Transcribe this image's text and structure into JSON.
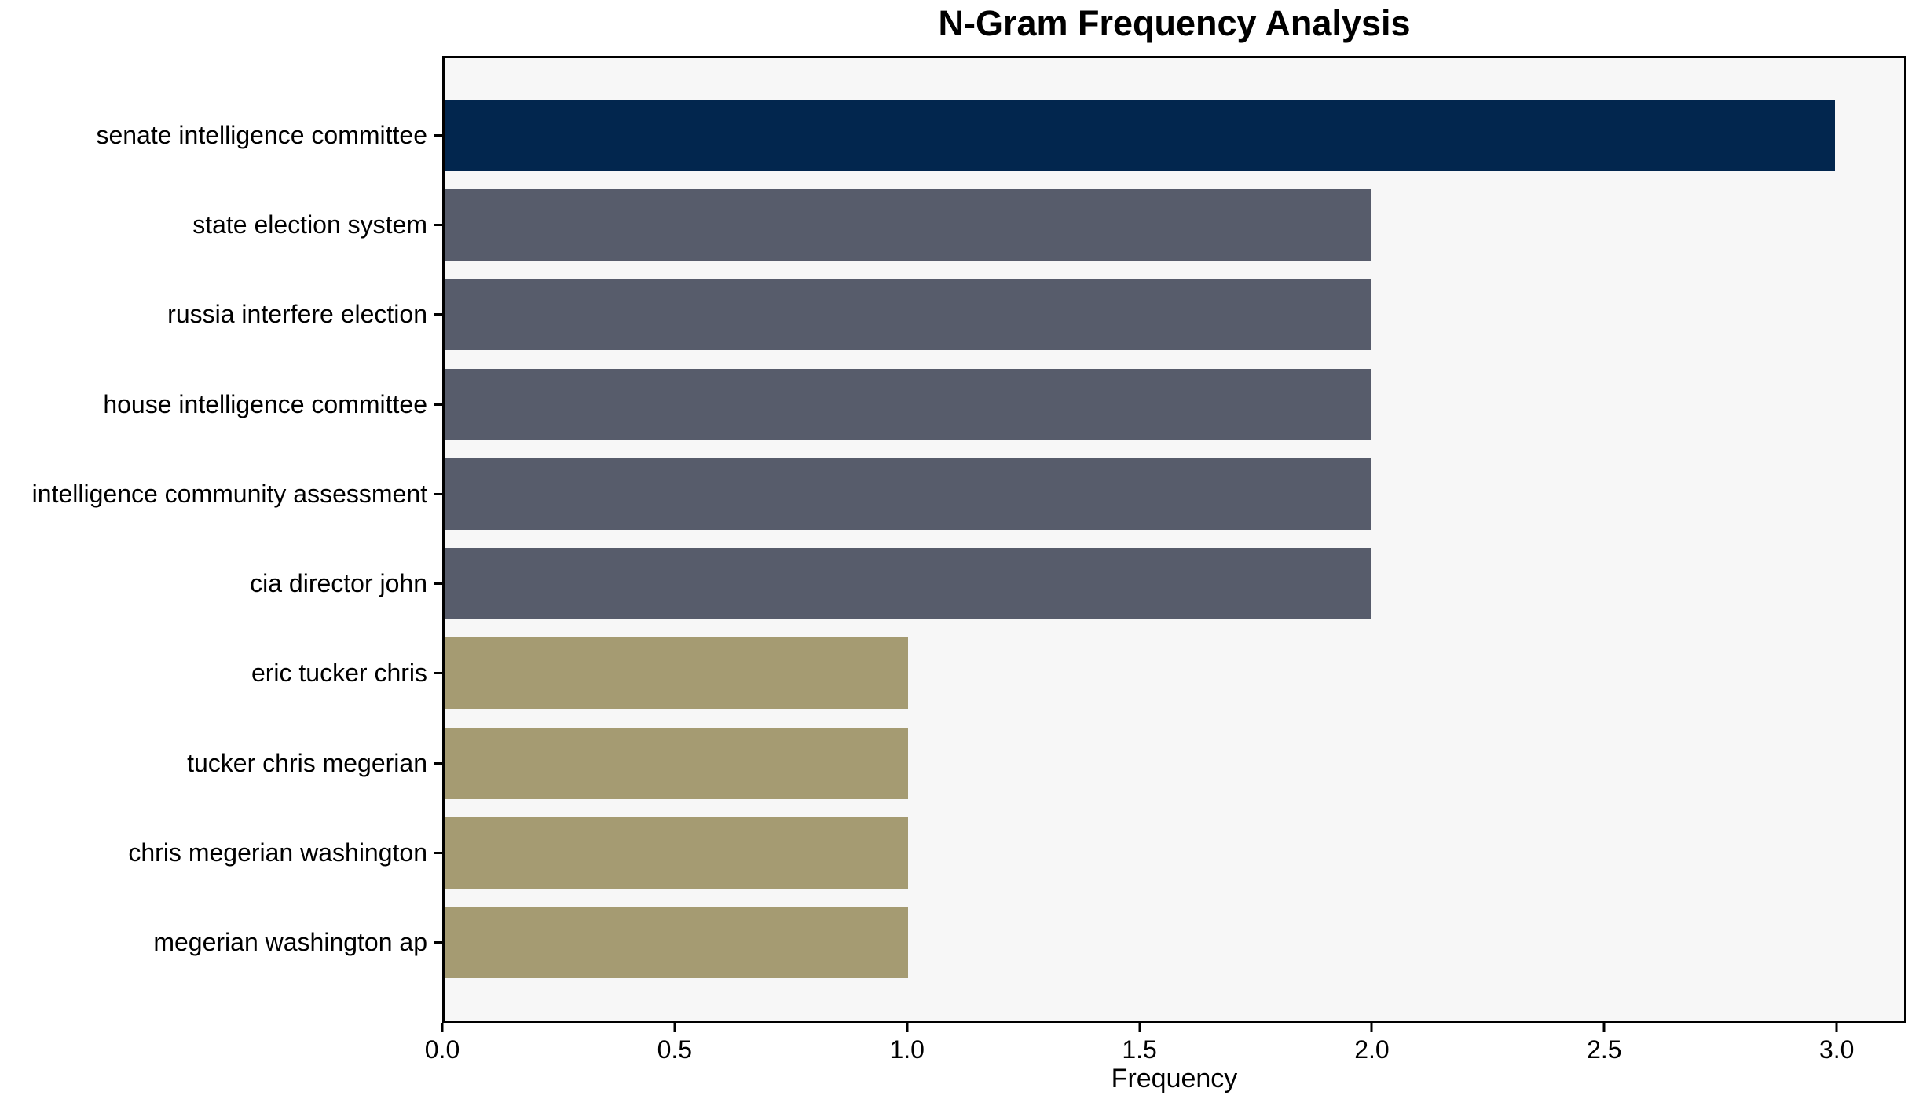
{
  "title": "N-Gram Frequency Analysis",
  "colors": {
    "top_bar": "#02264e",
    "mid_bar": "#575c6b",
    "low_bar": "#a59b72",
    "plot_background": "#f7f7f7",
    "spine": "#000000",
    "text": "#000000"
  },
  "chart_data": {
    "type": "bar",
    "orientation": "horizontal",
    "title": "N-Gram Frequency Analysis",
    "xlabel": "Frequency",
    "ylabel": "",
    "categories": [
      "senate intelligence committee",
      "state election system",
      "russia interfere election",
      "house intelligence committee",
      "intelligence community assessment",
      "cia director john",
      "eric tucker chris",
      "tucker chris megerian",
      "chris megerian washington",
      "megerian washington ap"
    ],
    "values": [
      3,
      2,
      2,
      2,
      2,
      2,
      1,
      1,
      1,
      1
    ],
    "bar_colors": [
      "#02264e",
      "#575c6b",
      "#575c6b",
      "#575c6b",
      "#575c6b",
      "#575c6b",
      "#a59b72",
      "#a59b72",
      "#a59b72",
      "#a59b72"
    ],
    "xlim": [
      0,
      3.15
    ],
    "x_ticks": [
      "0.0",
      "0.5",
      "1.0",
      "1.5",
      "2.0",
      "2.5",
      "3.0"
    ],
    "grid": false,
    "legend": null,
    "plot_background": "#f7f7f7"
  }
}
